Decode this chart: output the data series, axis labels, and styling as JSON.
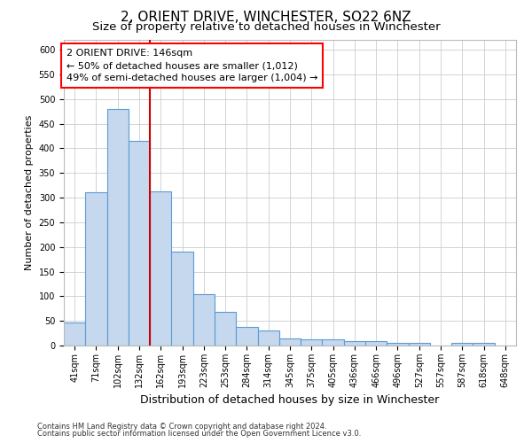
{
  "title": "2, ORIENT DRIVE, WINCHESTER, SO22 6NZ",
  "subtitle": "Size of property relative to detached houses in Winchester",
  "xlabel": "Distribution of detached houses by size in Winchester",
  "ylabel": "Number of detached properties",
  "footer_line1": "Contains HM Land Registry data © Crown copyright and database right 2024.",
  "footer_line2": "Contains public sector information licensed under the Open Government Licence v3.0.",
  "annotation_line1": "2 ORIENT DRIVE: 146sqm",
  "annotation_line2": "← 50% of detached houses are smaller (1,012)",
  "annotation_line3": "49% of semi-detached houses are larger (1,004) →",
  "bar_labels": [
    "41sqm",
    "71sqm",
    "102sqm",
    "132sqm",
    "162sqm",
    "193sqm",
    "223sqm",
    "253sqm",
    "284sqm",
    "314sqm",
    "345sqm",
    "375sqm",
    "405sqm",
    "436sqm",
    "466sqm",
    "496sqm",
    "527sqm",
    "557sqm",
    "587sqm",
    "618sqm",
    "648sqm"
  ],
  "bar_values": [
    47,
    311,
    480,
    415,
    313,
    191,
    104,
    69,
    37,
    31,
    14,
    12,
    13,
    9,
    9,
    5,
    5,
    0,
    5,
    5,
    0
  ],
  "bar_color": "#c5d8ed",
  "bar_edge_color": "#5b9bd5",
  "vline_x_index": 3.5,
  "vline_color": "#cc0000",
  "ylim": [
    0,
    620
  ],
  "yticks": [
    0,
    50,
    100,
    150,
    200,
    250,
    300,
    350,
    400,
    450,
    500,
    550,
    600
  ],
  "bg_color": "#ffffff",
  "grid_color": "#cccccc",
  "title_fontsize": 11,
  "subtitle_fontsize": 9.5,
  "ylabel_fontsize": 8,
  "xlabel_fontsize": 9,
  "tick_fontsize": 7,
  "annotation_fontsize": 8,
  "footer_fontsize": 6
}
